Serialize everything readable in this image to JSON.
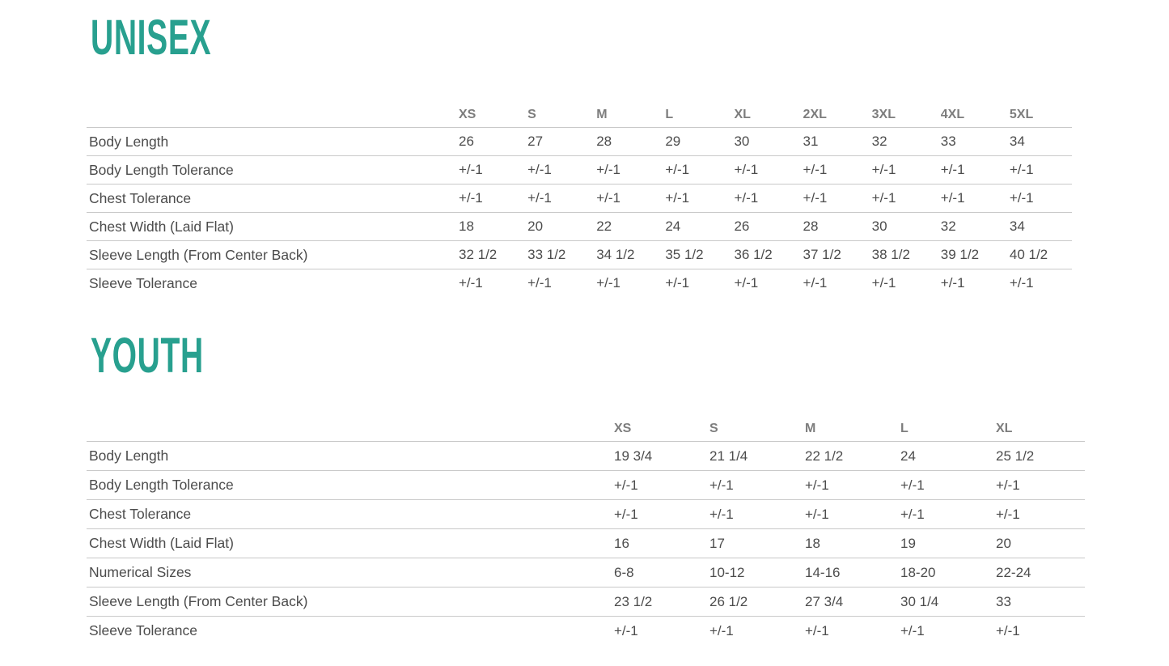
{
  "theme": {
    "accent": "#28a08f",
    "body_text": "#4c4c4c",
    "header_text": "#7d7d7d",
    "rule_line": "#c9c9c9"
  },
  "sections": [
    {
      "title": "UNISEX",
      "columns": [
        "XS",
        "S",
        "M",
        "L",
        "XL",
        "2XL",
        "3XL",
        "4XL",
        "5XL"
      ],
      "rows": [
        {
          "label": "Body Length",
          "values": [
            "26",
            "27",
            "28",
            "29",
            "30",
            "31",
            "32",
            "33",
            "34"
          ]
        },
        {
          "label": "Body Length Tolerance",
          "values": [
            "+/-1",
            "+/-1",
            "+/-1",
            "+/-1",
            "+/-1",
            "+/-1",
            "+/-1",
            "+/-1",
            "+/-1"
          ]
        },
        {
          "label": "Chest Tolerance",
          "values": [
            "+/-1",
            "+/-1",
            "+/-1",
            "+/-1",
            "+/-1",
            "+/-1",
            "+/-1",
            "+/-1",
            "+/-1"
          ]
        },
        {
          "label": "Chest Width (Laid Flat)",
          "values": [
            "18",
            "20",
            "22",
            "24",
            "26",
            "28",
            "30",
            "32",
            "34"
          ]
        },
        {
          "label": "Sleeve Length (From Center Back)",
          "values": [
            "32 1/2",
            "33 1/2",
            "34 1/2",
            "35 1/2",
            "36 1/2",
            "37 1/2",
            "38 1/2",
            "39 1/2",
            "40 1/2"
          ]
        },
        {
          "label": "Sleeve Tolerance",
          "values": [
            "+/-1",
            "+/-1",
            "+/-1",
            "+/-1",
            "+/-1",
            "+/-1",
            "+/-1",
            "+/-1",
            "+/-1"
          ]
        }
      ]
    },
    {
      "title": "YOUTH",
      "columns": [
        "XS",
        "S",
        "M",
        "L",
        "XL"
      ],
      "rows": [
        {
          "label": "Body Length",
          "values": [
            "19 3/4",
            "21 1/4",
            "22 1/2",
            "24",
            "25 1/2"
          ]
        },
        {
          "label": "Body Length Tolerance",
          "values": [
            "+/-1",
            "+/-1",
            "+/-1",
            "+/-1",
            "+/-1"
          ]
        },
        {
          "label": "Chest Tolerance",
          "values": [
            "+/-1",
            "+/-1",
            "+/-1",
            "+/-1",
            "+/-1"
          ]
        },
        {
          "label": "Chest Width (Laid Flat)",
          "values": [
            "16",
            "17",
            "18",
            "19",
            "20"
          ]
        },
        {
          "label": "Numerical Sizes",
          "values": [
            "6-8",
            "10-12",
            "14-16",
            "18-20",
            "22-24"
          ]
        },
        {
          "label": "Sleeve Length (From Center Back)",
          "values": [
            "23 1/2",
            "26 1/2",
            "27 3/4",
            "30 1/4",
            "33"
          ]
        },
        {
          "label": "Sleeve Tolerance",
          "values": [
            "+/-1",
            "+/-1",
            "+/-1",
            "+/-1",
            "+/-1"
          ]
        }
      ]
    }
  ]
}
